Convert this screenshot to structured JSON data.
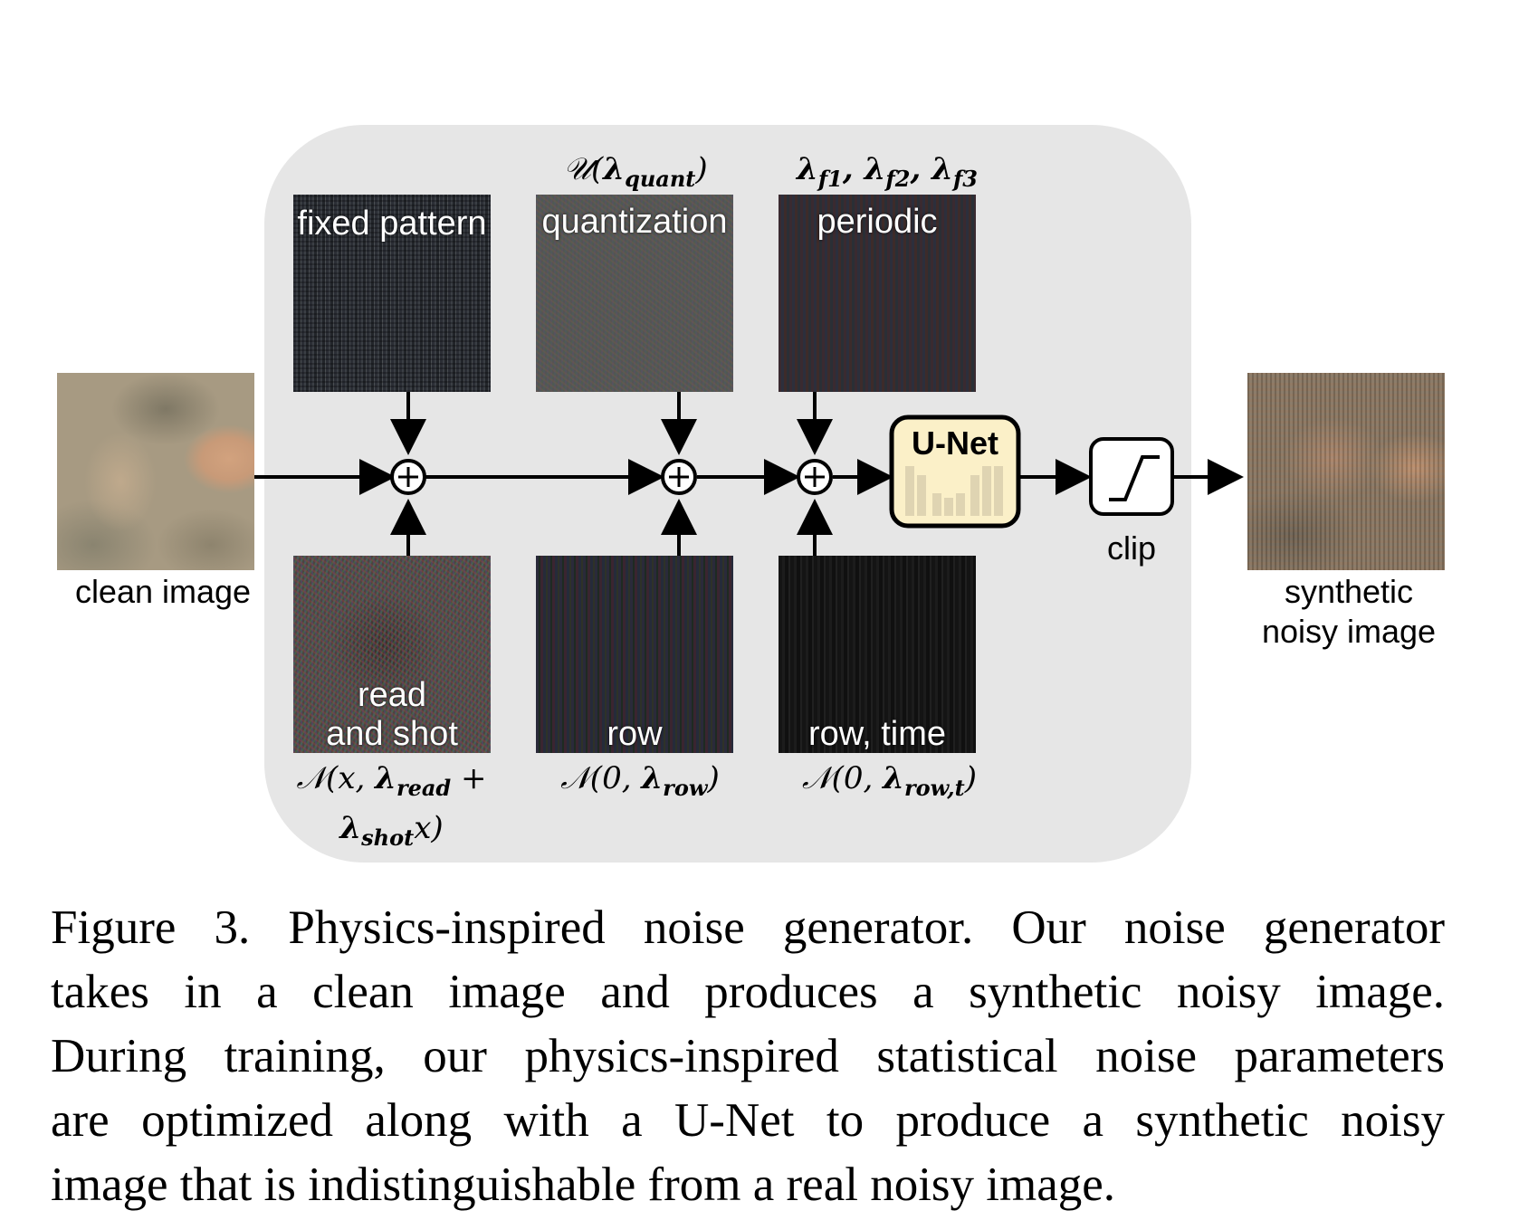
{
  "diagram": {
    "input_label": "clean image",
    "output_label_line1": "synthetic",
    "output_label_line2": "noisy image",
    "unet_label": "U-Net",
    "clip_label": "clip",
    "top_tiles": [
      {
        "label": "fixed pattern",
        "param": ""
      },
      {
        "label": "quantization",
        "param": "𝒰(λquant)"
      },
      {
        "label": "periodic",
        "param": "λf1, λf2, λf3"
      }
    ],
    "bottom_tiles": [
      {
        "label_line1": "read",
        "label_line2": "and shot",
        "param_line1": "𝒩(x, λread +",
        "param_line2": "λshotx)"
      },
      {
        "label_line1": "",
        "label_line2": "row",
        "param_line1": "𝒩(0, λrow)",
        "param_line2": ""
      },
      {
        "label_line1": "",
        "label_line2": "row, time",
        "param_line1": "𝒩(0, λrow,t)",
        "param_line2": ""
      }
    ],
    "plus_symbol": "+"
  },
  "caption": {
    "line1": "Figure 3. Physics-inspired noise generator. Our noise generator",
    "line2": "takes in a clean image and produces a synthetic noisy image.",
    "line3": "During training, our physics-inspired statistical noise parameters",
    "line4": "are optimized along with a U-Net to produce a synthetic noisy",
    "line5": "image that is indistinguishable from a real noisy image."
  },
  "colors": {
    "panel_bg": "#e6e6e6",
    "unet_fill": "#fbf0c8",
    "stroke": "#000000"
  }
}
